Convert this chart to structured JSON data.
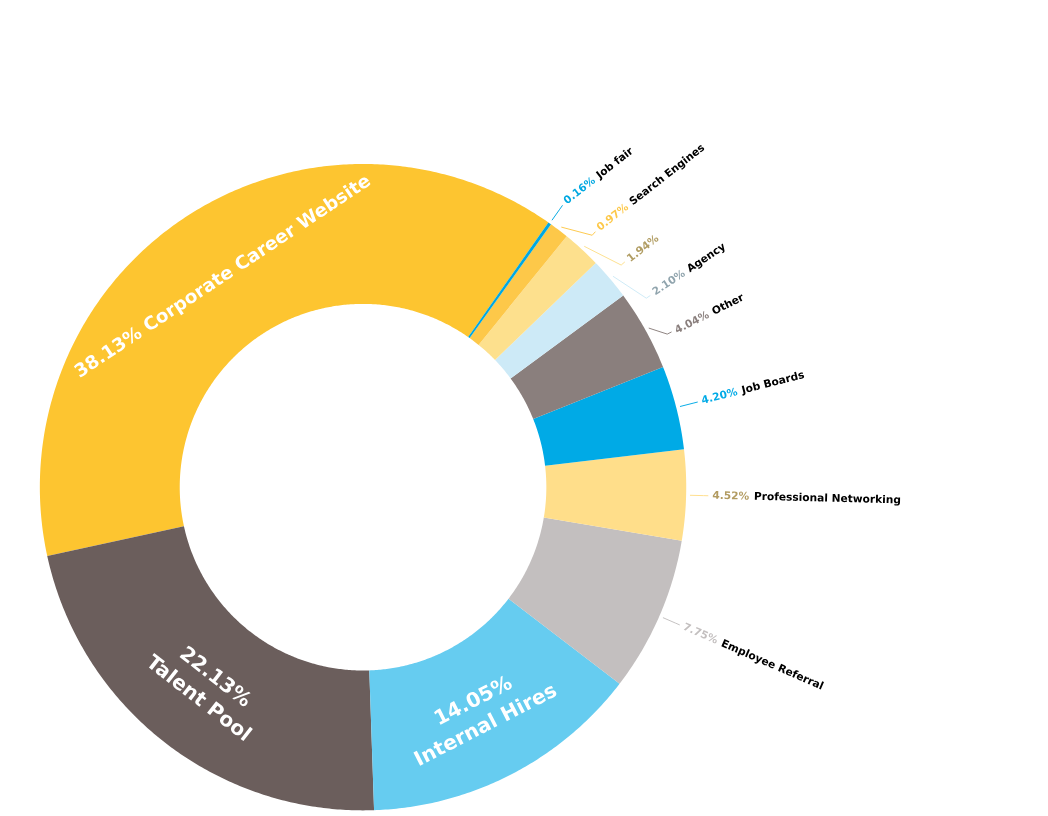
{
  "chart_data": {
    "type": "donut",
    "categories": [
      "Corporate Career Website",
      "Talent Pool",
      "Internal Hires",
      "Employee Referral",
      "Professional Networking",
      "Job Boards",
      "Other",
      "Agency",
      null,
      "Search Engines",
      "Job fair"
    ],
    "values": [
      38.13,
      22.13,
      14.05,
      7.75,
      4.52,
      4.2,
      4.04,
      2.1,
      1.94,
      0.97,
      0.16
    ],
    "value_labels": [
      "38.13%",
      "22.13%",
      "14.05%",
      "7.75%",
      "4.52%",
      "4.20%",
      "4.04%",
      "2.10%",
      "1.94%",
      "0.97%",
      "0.16%"
    ],
    "colors": [
      "#fdc530",
      "#6b5e5c",
      "#66ccf0",
      "#c3bfbf",
      "#ffde8a",
      "#00aae6",
      "#8a7f7d",
      "#cdeaf7",
      "#fde08d",
      "#fdc849",
      "#00a8e1"
    ]
  }
}
